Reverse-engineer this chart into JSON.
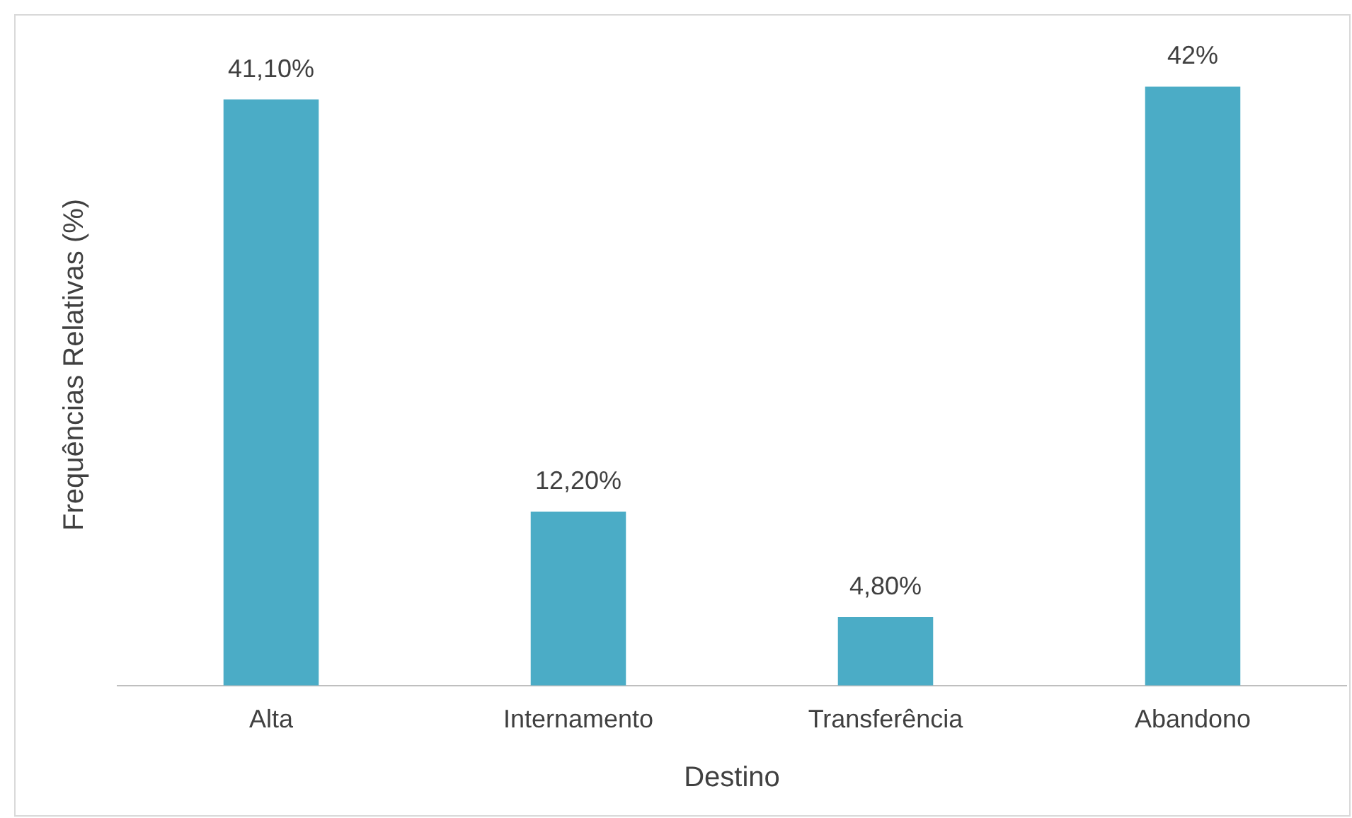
{
  "chart_data": {
    "type": "bar",
    "xlabel": "Destino",
    "ylabel": "Frequências Relativas (%)",
    "categories": [
      "Alta",
      "Internamento",
      "Transferência",
      "Abandono"
    ],
    "values": [
      41.1,
      12.2,
      4.8,
      42
    ],
    "value_labels": [
      "41,10%",
      "12,20%",
      "4,80%",
      "42%"
    ],
    "color": "#4bacc6",
    "grid": false,
    "legend": false,
    "tick_labels": "x"
  }
}
